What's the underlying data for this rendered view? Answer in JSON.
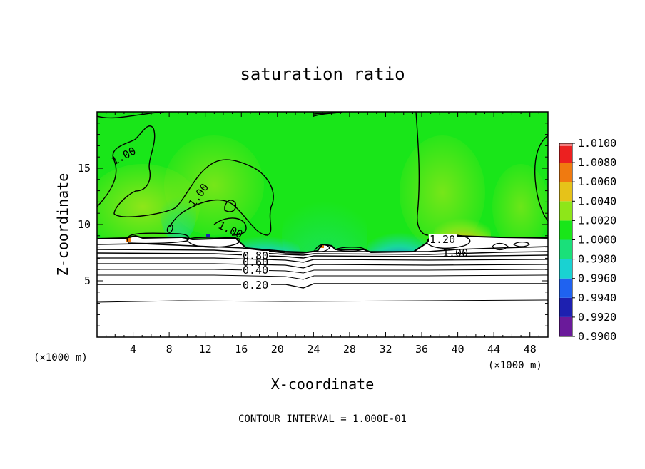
{
  "chart_data": {
    "type": "heatmap",
    "title": "saturation ratio",
    "xlabel": "X-coordinate",
    "ylabel": "Z-coordinate",
    "x_unit_label": "(×1000 m)",
    "z_unit_label": "(×1000 m)",
    "footer": "CONTOUR INTERVAL = 1.000E-01",
    "xlim": [
      0,
      50
    ],
    "ylim": [
      0,
      20
    ],
    "x_ticks": [
      4,
      8,
      12,
      16,
      20,
      24,
      28,
      32,
      36,
      40,
      44,
      48
    ],
    "y_ticks": [
      5,
      10,
      15
    ],
    "colorbar": {
      "levels": [
        "0.9900",
        "0.9920",
        "0.9940",
        "0.9960",
        "0.9980",
        "1.0000",
        "1.0020",
        "1.0040",
        "1.0060",
        "1.0080",
        "1.0100"
      ],
      "colors": [
        "#6a1a9a",
        "#1d20b0",
        "#1f62f0",
        "#19d2d2",
        "#1ae07a",
        "#19e619",
        "#8ee619",
        "#e6c219",
        "#f07a10",
        "#ec2020",
        "#f08080"
      ]
    },
    "contour_labels": [
      {
        "text": "1.00",
        "x": 2.9,
        "z": 16.5
      },
      {
        "text": "1.00",
        "x": 10.4,
        "z": 12.4
      },
      {
        "text": "1.00",
        "x": 15.0,
        "z": 9.3
      },
      {
        "text": "1.20",
        "x": 38.0,
        "z": 8.5
      },
      {
        "text": "1.00",
        "x": 39.3,
        "z": 7.6
      },
      {
        "text": "0.80",
        "x": 17.5,
        "z": 7.1
      },
      {
        "text": "0.60",
        "x": 17.5,
        "z": 6.6
      },
      {
        "text": "0.40",
        "x": 17.5,
        "z": 5.9
      },
      {
        "text": "0.20",
        "x": 17.5,
        "z": 4.6
      }
    ],
    "contour_levels_lower": [
      0.2,
      0.4,
      0.6,
      0.8,
      1.0
    ],
    "grid": false
  }
}
